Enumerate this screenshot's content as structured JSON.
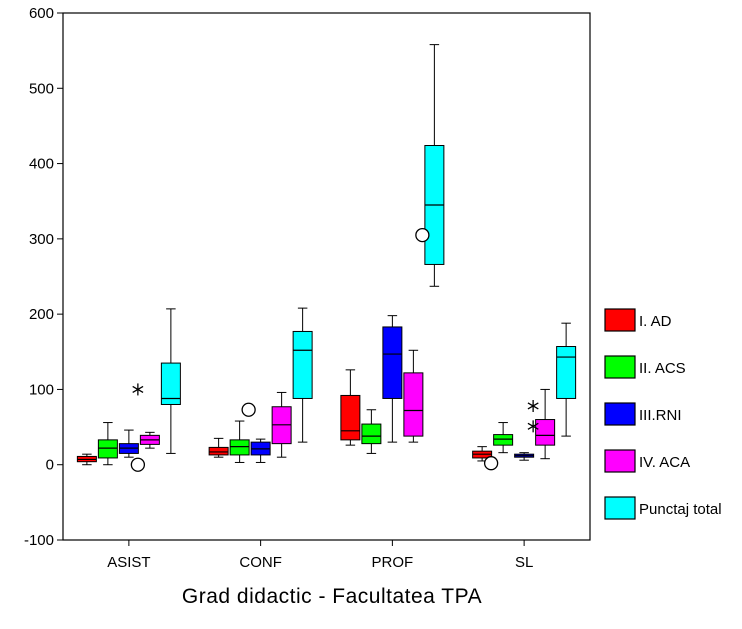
{
  "chart_data": {
    "type": "box",
    "title": "",
    "xlabel": "Grad didactic - Facultatea TPA",
    "ylabel": "",
    "ylim": [
      -100,
      600
    ],
    "yticks": [
      -100,
      0,
      100,
      200,
      300,
      400,
      500,
      600
    ],
    "categories": [
      "ASIST",
      "CONF",
      "PROF",
      "SL"
    ],
    "legend_position": "right",
    "grid": false,
    "series": [
      {
        "name": "I. AD",
        "color": "#ff0000",
        "boxes": [
          {
            "min": 0,
            "q1": 4,
            "median": 7,
            "q3": 11,
            "max": 14,
            "outliers": [],
            "extremes": []
          },
          {
            "min": 10,
            "q1": 13,
            "median": 17,
            "q3": 23,
            "max": 35,
            "outliers": [],
            "extremes": []
          },
          {
            "min": 26,
            "q1": 33,
            "median": 45,
            "q3": 92,
            "max": 126,
            "outliers": [],
            "extremes": []
          },
          {
            "min": 5,
            "q1": 9,
            "median": 14,
            "q3": 18,
            "max": 24,
            "outliers": [],
            "extremes": []
          }
        ]
      },
      {
        "name": "II. ACS",
        "color": "#00ff00",
        "boxes": [
          {
            "min": 0,
            "q1": 9,
            "median": 22,
            "q3": 33,
            "max": 56,
            "outliers": [],
            "extremes": []
          },
          {
            "min": 3,
            "q1": 13,
            "median": 24,
            "q3": 33,
            "max": 58,
            "outliers": [],
            "extremes": []
          },
          {
            "min": 15,
            "q1": 28,
            "median": 38,
            "q3": 54,
            "max": 73,
            "outliers": [],
            "extremes": []
          },
          {
            "min": 16,
            "q1": 26,
            "median": 34,
            "q3": 40,
            "max": 56,
            "outliers": [
              2
            ],
            "extremes": []
          }
        ]
      },
      {
        "name": "III.RNI",
        "color": "#0000ff",
        "boxes": [
          {
            "min": 10,
            "q1": 15,
            "median": 22,
            "q3": 28,
            "max": 46,
            "outliers": [],
            "extremes": []
          },
          {
            "min": 3,
            "q1": 13,
            "median": 21,
            "q3": 30,
            "max": 34,
            "outliers": [
              73
            ],
            "extremes": []
          },
          {
            "min": 30,
            "q1": 88,
            "median": 147,
            "q3": 183,
            "max": 198,
            "outliers": [],
            "extremes": []
          },
          {
            "min": 6,
            "q1": 10,
            "median": 12,
            "q3": 14,
            "max": 16,
            "outliers": [],
            "extremes": []
          }
        ]
      },
      {
        "name": "IV. ACA",
        "color": "#ff00ff",
        "boxes": [
          {
            "min": 22,
            "q1": 27,
            "median": 33,
            "q3": 39,
            "max": 43,
            "outliers": [
              0
            ],
            "extremes": [
              100
            ]
          },
          {
            "min": 10,
            "q1": 28,
            "median": 53,
            "q3": 77,
            "max": 96,
            "outliers": [],
            "extremes": []
          },
          {
            "min": 30,
            "q1": 38,
            "median": 72,
            "q3": 122,
            "max": 152,
            "outliers": [],
            "extremes": []
          },
          {
            "min": 8,
            "q1": 26,
            "median": 39,
            "q3": 60,
            "max": 100,
            "outliers": [],
            "extremes": [
              78,
              51
            ]
          }
        ]
      },
      {
        "name": "Punctaj total",
        "color": "#00ffff",
        "boxes": [
          {
            "min": 15,
            "q1": 80,
            "median": 88,
            "q3": 135,
            "max": 207,
            "outliers": [],
            "extremes": []
          },
          {
            "min": 30,
            "q1": 88,
            "median": 152,
            "q3": 177,
            "max": 208,
            "outliers": [],
            "extremes": []
          },
          {
            "min": 237,
            "q1": 266,
            "median": 345,
            "q3": 424,
            "max": 558,
            "outliers": [
              305
            ],
            "extremes": []
          },
          {
            "min": 38,
            "q1": 88,
            "median": 143,
            "q3": 157,
            "max": 188,
            "outliers": [],
            "extremes": []
          }
        ]
      }
    ]
  }
}
